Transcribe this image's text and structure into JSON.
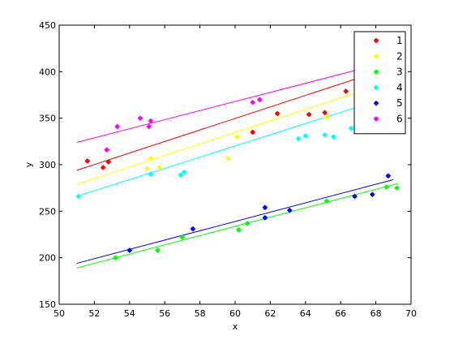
{
  "chart_data": {
    "type": "scatter",
    "title": "",
    "xlabel": "x",
    "ylabel": "y",
    "xlim": [
      50,
      70
    ],
    "ylim": [
      150,
      450
    ],
    "xticks": [
      50,
      52,
      54,
      56,
      58,
      60,
      62,
      64,
      66,
      68,
      70
    ],
    "yticks": [
      150,
      200,
      250,
      300,
      350,
      400,
      450
    ],
    "grid": false,
    "legend": "top-right",
    "series": [
      {
        "name": "1",
        "color": "#ff0000",
        "points": [
          [
            51.6,
            304
          ],
          [
            52.5,
            297
          ],
          [
            52.8,
            303
          ],
          [
            61.0,
            335
          ],
          [
            62.4,
            355
          ],
          [
            64.2,
            354
          ],
          [
            65.1,
            356
          ],
          [
            66.3,
            379
          ]
        ],
        "fit": [
          [
            51.0,
            294
          ],
          [
            68.6,
            403
          ]
        ]
      },
      {
        "name": "2",
        "color": "#ffff00",
        "points": [
          [
            51.1,
            266
          ],
          [
            55.0,
            296
          ],
          [
            55.2,
            307
          ],
          [
            55.7,
            297
          ],
          [
            59.6,
            307
          ],
          [
            60.1,
            330
          ],
          [
            65.2,
            351
          ]
        ],
        "fit": [
          [
            51.0,
            279
          ],
          [
            68.6,
            388
          ]
        ]
      },
      {
        "name": "3",
        "color": "#00ff00",
        "points": [
          [
            53.2,
            200
          ],
          [
            55.6,
            208
          ],
          [
            57.0,
            222
          ],
          [
            60.2,
            230
          ],
          [
            60.7,
            237
          ],
          [
            65.2,
            261
          ],
          [
            68.6,
            276
          ],
          [
            69.2,
            275
          ]
        ],
        "fit": [
          [
            51.0,
            189
          ],
          [
            69.3,
            280
          ]
        ]
      },
      {
        "name": "4",
        "color": "#00ffff",
        "points": [
          [
            51.1,
            266
          ],
          [
            55.2,
            290
          ],
          [
            56.9,
            289
          ],
          [
            57.1,
            292
          ],
          [
            63.6,
            328
          ],
          [
            64.0,
            331
          ],
          [
            65.1,
            332
          ],
          [
            65.6,
            330
          ],
          [
            66.6,
            339
          ]
        ],
        "fit": [
          [
            51.0,
            266
          ],
          [
            68.6,
            372
          ]
        ]
      },
      {
        "name": "5",
        "color": "#0000ff",
        "points": [
          [
            54.0,
            208
          ],
          [
            57.6,
            231
          ],
          [
            61.7,
            254
          ],
          [
            61.7,
            243
          ],
          [
            63.1,
            251
          ],
          [
            66.8,
            266
          ],
          [
            67.8,
            268
          ],
          [
            68.7,
            288
          ]
        ],
        "fit": [
          [
            51.0,
            194
          ],
          [
            69.0,
            284
          ]
        ]
      },
      {
        "name": "6",
        "color": "#ff00ff",
        "points": [
          [
            52.7,
            316
          ],
          [
            53.3,
            341
          ],
          [
            54.6,
            350
          ],
          [
            55.1,
            341
          ],
          [
            55.2,
            347
          ],
          [
            61.0,
            367
          ],
          [
            61.4,
            370
          ]
        ],
        "fit": [
          [
            51.0,
            324
          ],
          [
            68.6,
            410
          ]
        ]
      }
    ]
  }
}
